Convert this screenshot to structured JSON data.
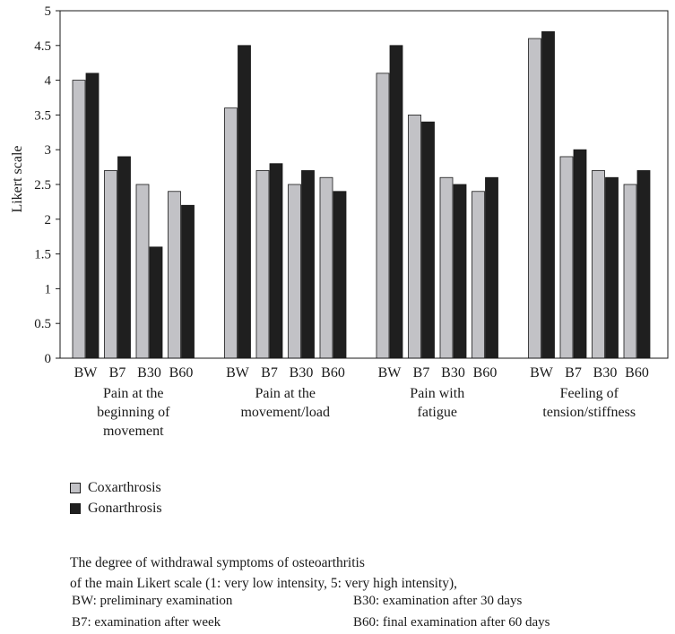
{
  "chart_data": {
    "type": "bar",
    "ylabel": "Likert scale",
    "ylim": [
      0,
      5
    ],
    "yticks": [
      "0",
      "0.5",
      "1",
      "1.5",
      "2",
      "2.5",
      "3",
      "3.5",
      "4",
      "4.5",
      "5"
    ],
    "categories": [
      "BW",
      "B7",
      "B30",
      "B60"
    ],
    "groups": [
      {
        "label_lines": [
          "Pain at the",
          "beginning of",
          "movement"
        ],
        "values": {
          "coxarthrosis": [
            4.0,
            2.7,
            2.5,
            2.4
          ],
          "gonarthrosis": [
            4.1,
            2.9,
            1.6,
            2.2
          ]
        }
      },
      {
        "label_lines": [
          "Pain at the",
          "movement/load"
        ],
        "values": {
          "coxarthrosis": [
            3.6,
            2.7,
            2.5,
            2.6
          ],
          "gonarthrosis": [
            4.5,
            2.8,
            2.7,
            2.4
          ]
        }
      },
      {
        "label_lines": [
          "Pain with",
          "fatigue"
        ],
        "values": {
          "coxarthrosis": [
            4.1,
            3.5,
            2.6,
            2.4
          ],
          "gonarthrosis": [
            4.5,
            3.4,
            2.5,
            2.6
          ]
        }
      },
      {
        "label_lines": [
          "Feeling of",
          "tension/stiffness"
        ],
        "values": {
          "coxarthrosis": [
            4.6,
            2.9,
            2.7,
            2.5
          ],
          "gonarthrosis": [
            4.7,
            3.0,
            2.6,
            2.7
          ]
        }
      }
    ],
    "series": [
      {
        "key": "coxarthrosis",
        "name": "Coxarthrosis",
        "color": "#c2c2c6"
      },
      {
        "key": "gonarthrosis",
        "name": "Gonarthrosis",
        "color": "#1f1f1f"
      }
    ],
    "legend_position": "bottom-left",
    "grid": false
  },
  "caption": {
    "line1": "The degree of withdrawal symptoms of osteoarthritis",
    "line2": "of the main Likert scale (1: very low intensity, 5: very high intensity),"
  },
  "abbreviations": [
    [
      "BW: preliminary examination",
      "B30: examination after 30 days"
    ],
    [
      "B7: examination after week",
      "B60: final examination after 60 days"
    ]
  ]
}
